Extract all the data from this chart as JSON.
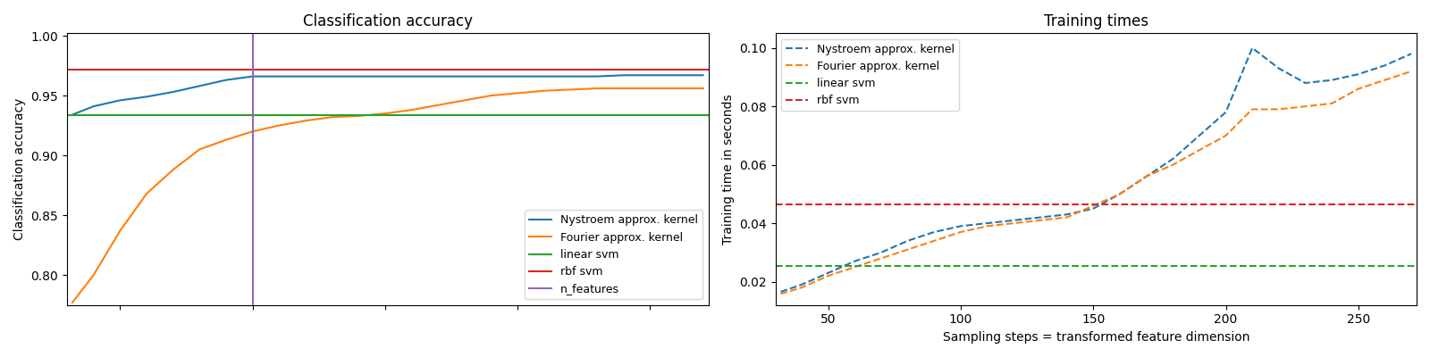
{
  "left_title": "Classification accuracy",
  "right_title": "Training times",
  "left_ylabel": "Classification accuracy",
  "right_ylabel": "Training time in seconds",
  "right_xlabel": "Sampling steps = transformed feature dimension",
  "acc_x": [
    32,
    40,
    50,
    60,
    70,
    80,
    90,
    100,
    110,
    120,
    130,
    140,
    150,
    160,
    170,
    180,
    190,
    200,
    210,
    220,
    230,
    240,
    250,
    260,
    270
  ],
  "nystroem_acc": [
    0.934,
    0.941,
    0.946,
    0.949,
    0.953,
    0.958,
    0.963,
    0.966,
    0.966,
    0.966,
    0.966,
    0.966,
    0.966,
    0.966,
    0.966,
    0.966,
    0.966,
    0.966,
    0.966,
    0.966,
    0.966,
    0.967,
    0.967,
    0.967,
    0.967
  ],
  "fourier_acc": [
    0.777,
    0.8,
    0.837,
    0.868,
    0.888,
    0.905,
    0.913,
    0.92,
    0.925,
    0.929,
    0.932,
    0.933,
    0.935,
    0.938,
    0.942,
    0.946,
    0.95,
    0.952,
    0.954,
    0.955,
    0.956,
    0.956,
    0.956,
    0.956,
    0.956
  ],
  "linear_svm_acc": 0.934,
  "rbf_svm_acc": 0.972,
  "n_features_vline": 100,
  "time_x": [
    32,
    40,
    50,
    60,
    70,
    80,
    90,
    100,
    110,
    120,
    130,
    140,
    150,
    160,
    170,
    180,
    190,
    200,
    210,
    220,
    230,
    240,
    250,
    260,
    270
  ],
  "nystroem_time": [
    0.0165,
    0.019,
    0.023,
    0.027,
    0.03,
    0.034,
    0.037,
    0.039,
    0.04,
    0.041,
    0.042,
    0.043,
    0.045,
    0.05,
    0.056,
    0.062,
    0.07,
    0.078,
    0.1,
    0.093,
    0.088,
    0.089,
    0.091,
    0.094,
    0.098
  ],
  "fourier_time": [
    0.0158,
    0.018,
    0.022,
    0.025,
    0.028,
    0.031,
    0.034,
    0.037,
    0.039,
    0.04,
    0.041,
    0.042,
    0.046,
    0.05,
    0.056,
    0.06,
    0.065,
    0.07,
    0.079,
    0.079,
    0.08,
    0.081,
    0.086,
    0.089,
    0.092
  ],
  "linear_svm_time": 0.0254,
  "rbf_svm_time": 0.0465,
  "nystroem_color": "#1f77b4",
  "fourier_color": "#ff7f0e",
  "linear_svm_color": "#2ca02c",
  "rbf_svm_color": "#d62728",
  "n_features_color": "#9467bd",
  "left_ylim": [
    0.775,
    1.002
  ],
  "left_xlim": [
    30,
    272
  ],
  "right_ylim": [
    0.012,
    0.105
  ],
  "right_xlim": [
    30,
    272
  ]
}
